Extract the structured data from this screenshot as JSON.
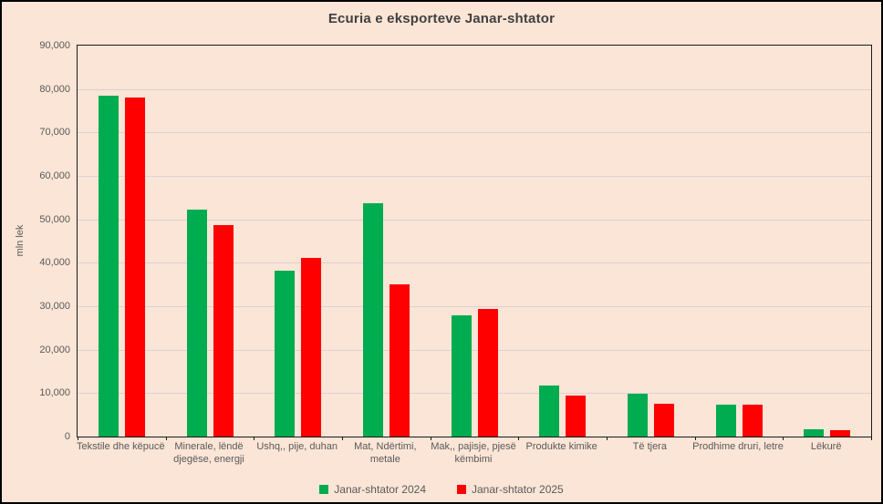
{
  "chart_data": {
    "type": "bar",
    "title": "Ecuria e eksporteve Janar-shtator",
    "xlabel": "",
    "ylabel": "mln lek",
    "ylim": [
      0,
      90000
    ],
    "ytick_step": 10000,
    "grid": true,
    "legend_position": "bottom",
    "categories": [
      "Tekstile dhe këpucë",
      "Minerale, lëndë djegëse, energji",
      "Ushq,, pije, duhan",
      "Mat, Ndërtimi, metale",
      "Mak,, pajisje, pjesë këmbimi",
      "Produkte kimike",
      "Të tjera",
      "Prodhime druri, letre",
      "Lëkurë"
    ],
    "series": [
      {
        "name": "Janar-shtator 2024",
        "color": "#00AC50",
        "values": [
          78500,
          52200,
          38200,
          53700,
          27900,
          11800,
          9800,
          7400,
          1700
        ]
      },
      {
        "name": "Janar-shtator 2025",
        "color": "#FF0000",
        "values": [
          78100,
          48700,
          41100,
          35000,
          29400,
          9500,
          7600,
          7400,
          1450
        ]
      }
    ]
  },
  "colors": {
    "background": "#FBE5D6",
    "title_text": "#404040",
    "axis_text": "#595959",
    "gridline": "#D9D2D6",
    "axis_line": "#1A1A1A",
    "series_2024": "#00AC50",
    "series_2025": "#FF0000"
  }
}
